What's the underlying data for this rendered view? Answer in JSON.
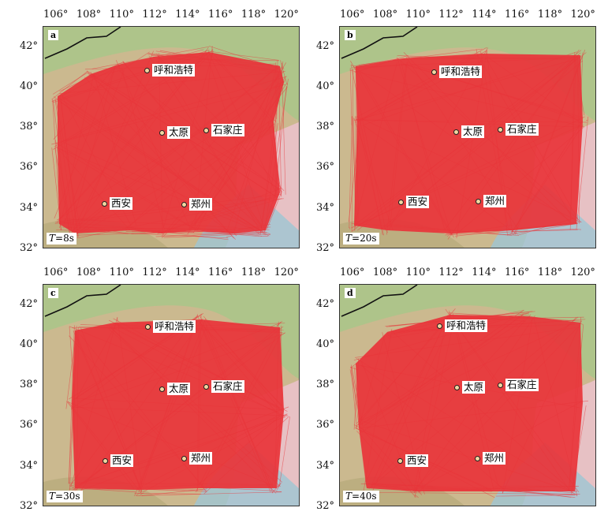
{
  "map": {
    "lon_ticks": [
      "106°",
      "108°",
      "110°",
      "112°",
      "114°",
      "116°",
      "118°",
      "120°"
    ],
    "lat_ticks": [
      "42°",
      "40°",
      "38°",
      "36°",
      "34°",
      "32°"
    ],
    "cities": {
      "hohhot": "呼和浩特",
      "taiyuan": "太原",
      "shijiazhuang": "石家庄",
      "xian": "西安",
      "zhengzhou": "郑州"
    },
    "colors": {
      "paths": "#e8353a",
      "land_green": "#a9c58a",
      "land_tan": "#cbb98f",
      "sea": "#e7c1c4",
      "shore_water": "#9ec5d3"
    }
  },
  "panels": [
    {
      "letter": "a",
      "period_var": "T",
      "period_val": "=8s"
    },
    {
      "letter": "b",
      "period_var": "T",
      "period_val": "=20s"
    },
    {
      "letter": "c",
      "period_var": "T",
      "period_val": "=30s"
    },
    {
      "letter": "d",
      "period_var": "T",
      "period_val": "=40s"
    }
  ]
}
